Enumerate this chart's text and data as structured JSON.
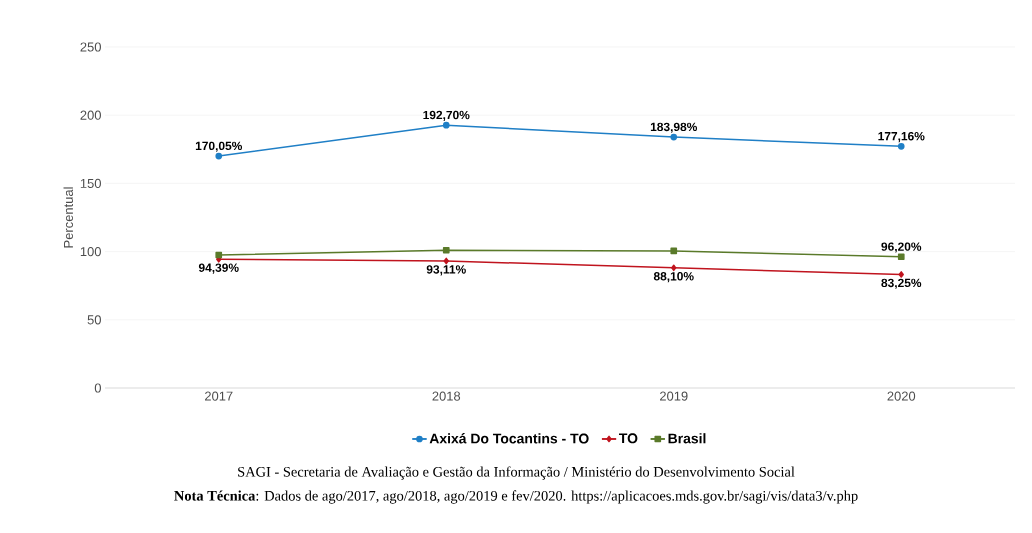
{
  "chart_data": {
    "type": "line",
    "ylabel": "Percentual",
    "categories": [
      "2017",
      "2018",
      "2019",
      "2020"
    ],
    "series": [
      {
        "name": "Axixá Do Tocantins - TO",
        "color": "#1f7fc6",
        "marker": "circle",
        "values": [
          170.05,
          192.7,
          183.98,
          177.16
        ],
        "value_labels": [
          "170,05%",
          "192,70%",
          "183,98%",
          "177,16%"
        ]
      },
      {
        "name": "TO",
        "color": "#c0141e",
        "marker": "diamond",
        "values": [
          94.39,
          93.11,
          88.1,
          83.25
        ],
        "value_labels": [
          "94,39%",
          "93,11%",
          "88,10%",
          "83,25%"
        ]
      },
      {
        "name": "Brasil",
        "color": "#5a7a2a",
        "marker": "square",
        "values": [
          97.5,
          101,
          100.5,
          96.2
        ],
        "value_labels": [
          null,
          null,
          null,
          "96,20%"
        ]
      }
    ],
    "ylim": [
      0,
      250
    ],
    "yticks": [
      0,
      50,
      100,
      150,
      200,
      250
    ],
    "grid": "y",
    "legend": "bottom",
    "line_style": "solid",
    "annotations": [
      "SAGI - Secretaria de Avaliação e Gestão da Informação / Ministério do Desenvolvimento Social",
      "**Nota Técnica**: Dados de ago/2017, ago/2018, ago/2019 e fev/2020. https://aplicacoes.mds.gov.br/sagi/vis/data3/v.php"
    ]
  }
}
